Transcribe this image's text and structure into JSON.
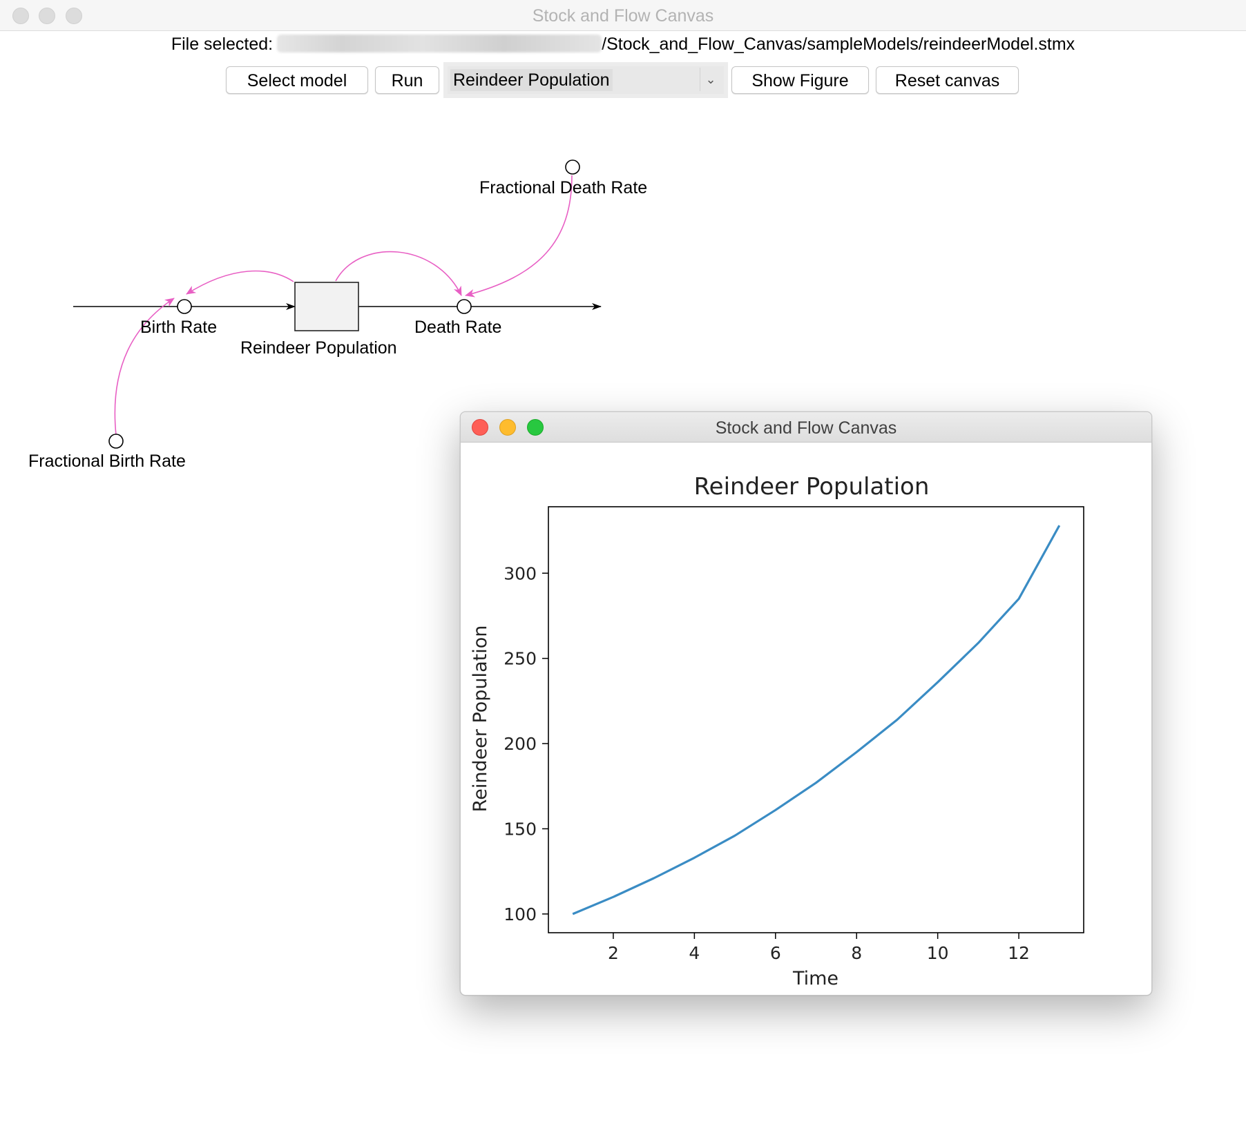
{
  "window": {
    "title": "Stock and Flow Canvas"
  },
  "file": {
    "label": "File selected:",
    "path_suffix": "/Stock_and_Flow_Canvas/sampleModels/reindeerModel.stmx"
  },
  "toolbar": {
    "select_model_label": "Select model",
    "run_label": "Run",
    "variable_selected": "Reindeer Population",
    "show_figure_label": "Show Figure",
    "reset_canvas_label": "Reset canvas"
  },
  "diagram": {
    "stock_label": "Reindeer Population",
    "inflow_label": "Birth Rate",
    "outflow_label": "Death Rate",
    "aux_birth_label": "Fractional Birth Rate",
    "aux_death_label": "Fractional Death Rate",
    "link_color": "#e85fc4"
  },
  "figure_window": {
    "title": "Stock and Flow Canvas"
  },
  "chart_data": {
    "type": "line",
    "title": "Reindeer Population",
    "xlabel": "Time",
    "ylabel": "Reindeer Population",
    "xlim": [
      0.4,
      13.6
    ],
    "ylim": [
      89,
      339
    ],
    "xticks": [
      2,
      4,
      6,
      8,
      10,
      12
    ],
    "yticks": [
      100,
      150,
      200,
      250,
      300
    ],
    "grid": false,
    "line_color": "#3a8cc4",
    "series": [
      {
        "x": [
          1,
          2,
          3,
          4,
          5,
          6,
          7,
          8,
          9,
          10,
          11,
          12,
          13
        ],
        "values": [
          100,
          110,
          121,
          133,
          146,
          161,
          177,
          195,
          214,
          236,
          259,
          285,
          328
        ]
      }
    ]
  }
}
